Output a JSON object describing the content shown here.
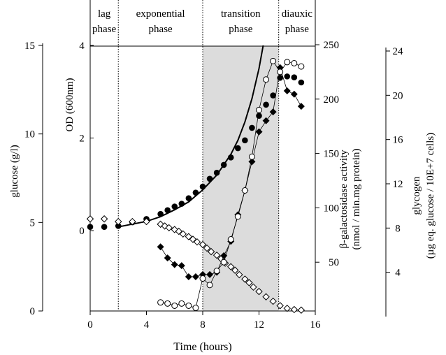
{
  "chart_data": {
    "type": "scatter",
    "title": "",
    "xlabel": "Time (hours)",
    "xlim": [
      0,
      16
    ],
    "x_ticks": [
      "0",
      "4",
      "8",
      "12",
      "16"
    ],
    "grid": false,
    "legend": "none",
    "phases": [
      {
        "label_line1": "lag",
        "label_line2": "phase",
        "x_start": 0,
        "x_end": 2
      },
      {
        "label_line1": "exponential",
        "label_line2": "phase",
        "x_start": 2,
        "x_end": 8
      },
      {
        "label_line1": "transition",
        "label_line2": "phase",
        "x_start": 8,
        "x_end": 13.4,
        "shaded": true
      },
      {
        "label_line1": "diauxic",
        "label_line2": "phase",
        "x_start": 13.4,
        "x_end": 16
      }
    ],
    "axes": {
      "glucose": {
        "label": "glucose (g/l)",
        "ticks": [
          "0",
          "5",
          "10",
          "15"
        ],
        "range": [
          0,
          15
        ]
      },
      "od": {
        "label": "OD (600nm)",
        "ticks": [
          "0",
          "2",
          "4"
        ],
        "range": [
          -1,
          4
        ]
      },
      "galactosidase": {
        "label_line1": "β-galactosidase activity",
        "label_line2": "(nmol / min.mg protein)",
        "ticks": [
          "50",
          "100",
          "150",
          "200",
          "250"
        ],
        "range": [
          0,
          250
        ]
      },
      "glycogen": {
        "label_line1": "glycogen",
        "label_line2": "(µg eq. glucose / 10E+7 cells)",
        "ticks": [
          "4",
          "8",
          "12",
          "16",
          "20",
          "24"
        ],
        "range": [
          0,
          24
        ]
      }
    },
    "series": [
      {
        "marker": "filled-circle",
        "axis": "od",
        "x": [
          0,
          1,
          2,
          3,
          4,
          5,
          5.5,
          6,
          6.5,
          7,
          7.5,
          8,
          8.5,
          9,
          9.5,
          10,
          10.5,
          11,
          11.5,
          12,
          12.5,
          13,
          13.5,
          14,
          14.5,
          15
        ],
        "y": [
          0.08,
          0.08,
          0.1,
          0.18,
          0.25,
          0.36,
          0.44,
          0.52,
          0.58,
          0.7,
          0.82,
          0.95,
          1.12,
          1.25,
          1.42,
          1.58,
          1.78,
          1.95,
          2.22,
          2.48,
          2.72,
          2.92,
          3.3,
          3.33,
          3.31,
          3.2
        ]
      },
      {
        "marker": "line",
        "axis": "od",
        "x": [
          2,
          3,
          4,
          5,
          6,
          7,
          8,
          9,
          10,
          10.5,
          11,
          11.5,
          12,
          12.3
        ],
        "y": [
          0.08,
          0.14,
          0.2,
          0.3,
          0.45,
          0.62,
          0.88,
          1.2,
          1.65,
          1.95,
          2.35,
          2.85,
          3.5,
          4.0
        ]
      },
      {
        "marker": "open-diamond",
        "axis": "glucose",
        "x": [
          0,
          1,
          2,
          3,
          4,
          5,
          5.3,
          5.6,
          6,
          6.3,
          6.6,
          7,
          7.3,
          7.6,
          8,
          8.3,
          8.6,
          9,
          9.3,
          9.6,
          10,
          10.3,
          10.6,
          11,
          11.3,
          11.6,
          12,
          12.5,
          13,
          13.5,
          14,
          14.5,
          15
        ],
        "y": [
          5.2,
          5.2,
          5.05,
          5.05,
          5.05,
          4.9,
          4.8,
          4.7,
          4.6,
          4.5,
          4.35,
          4.2,
          4.05,
          3.9,
          3.75,
          3.55,
          3.35,
          3.15,
          2.95,
          2.7,
          2.5,
          2.3,
          2.05,
          1.8,
          1.6,
          1.35,
          1.1,
          0.8,
          0.55,
          0.3,
          0.15,
          0.08,
          0.05
        ]
      },
      {
        "marker": "filled-diamond",
        "axis": "glycogen",
        "x": [
          5,
          5.5,
          6,
          6.5,
          7,
          7.5,
          8,
          8.5,
          9,
          9.5,
          10,
          10.5,
          11,
          11.5,
          12,
          12.5,
          13,
          13.5,
          14,
          14.5,
          15
        ],
        "y": [
          6.3,
          5.3,
          4.7,
          4.6,
          3.6,
          3.6,
          3.8,
          3.8,
          4.0,
          5.5,
          6.8,
          9.2,
          11.4,
          14.0,
          16.7,
          17.7,
          18.5,
          22.5,
          20.4,
          20.1,
          19.0
        ]
      },
      {
        "marker": "open-circle",
        "axis": "galactosidase",
        "x": [
          5,
          5.5,
          6,
          6.5,
          7,
          7.5,
          8,
          8.5,
          9,
          9.5,
          10,
          10.5,
          11,
          11.5,
          12,
          12.5,
          13,
          13.5,
          14,
          14.5,
          15
        ],
        "y": [
          13,
          12,
          10,
          12,
          10,
          8,
          35,
          29,
          42,
          50,
          71,
          92,
          116,
          147,
          190,
          218,
          235,
          225,
          234,
          233,
          230
        ]
      }
    ]
  }
}
